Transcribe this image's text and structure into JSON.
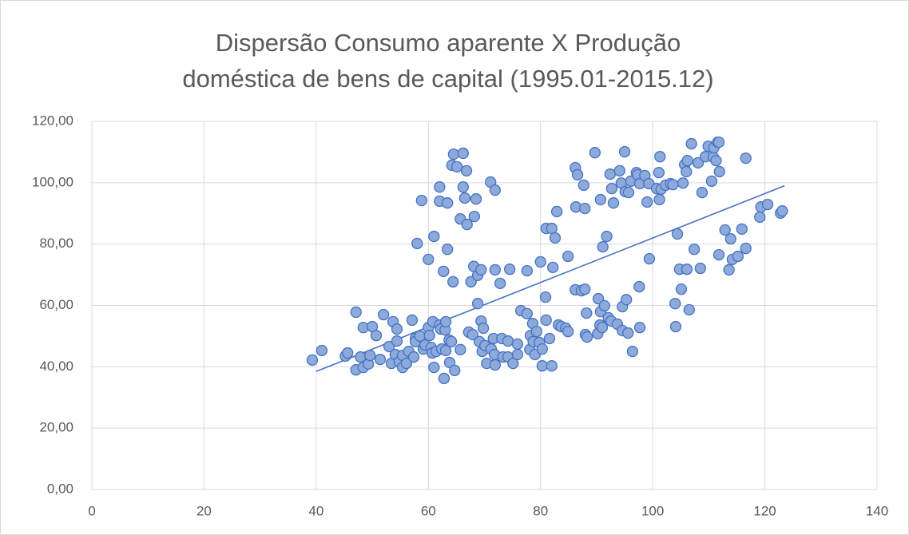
{
  "chart_data": {
    "type": "scatter",
    "title": "Dispersão Consumo aparente X Produção doméstica de bens de capital (1995.01-2015.12)",
    "xlim": [
      0,
      140
    ],
    "xticks": [
      0,
      20,
      40,
      60,
      80,
      100,
      120,
      140
    ],
    "ylim": [
      0,
      120
    ],
    "yticks": [
      {
        "value": 0,
        "label": "0,00"
      },
      {
        "value": 20,
        "label": "20,00"
      },
      {
        "value": 40,
        "label": "40,00"
      },
      {
        "value": 60,
        "label": "60,00"
      },
      {
        "value": 80,
        "label": "80,00"
      },
      {
        "value": 100,
        "label": "100,00"
      },
      {
        "value": 120,
        "label": "120,00"
      }
    ],
    "grid": true,
    "color": "#8eaadb",
    "edgecolor": "#4472c4",
    "x": [
      39.3,
      41,
      45.2,
      45.6,
      47.1,
      47.1,
      47.9,
      48.4,
      48.4,
      49.3,
      49.6,
      50,
      50.7,
      51.4,
      52,
      53,
      53.4,
      53.7,
      54.1,
      54.4,
      54.4,
      54.8,
      55.4,
      55.4,
      56.1,
      56.5,
      57.1,
      57.4,
      57.7,
      57.7,
      58.5,
      58,
      58.8,
      59.1,
      59.4,
      60,
      60,
      60.2,
      60.5,
      60.7,
      60.8,
      61,
      61,
      61.4,
      62,
      62,
      62,
      62.2,
      62.4,
      62.7,
      62.8,
      63,
      63.1,
      63.1,
      63.4,
      63.4,
      63.7,
      63.8,
      64.1,
      64.2,
      64.4,
      64.5,
      64.7,
      65.1,
      65.7,
      65.7,
      66.2,
      66.2,
      66.5,
      66.8,
      66.9,
      67.2,
      67.6,
      67.9,
      68.1,
      68.2,
      68.5,
      68.8,
      68.8,
      69.1,
      69.4,
      69.4,
      69.6,
      69.8,
      70.1,
      70.4,
      71.1,
      71.2,
      71.6,
      71.8,
      71.9,
      71.9,
      71.9,
      72.8,
      73.1,
      73.3,
      74.2,
      74.2,
      74.5,
      75.1,
      75.9,
      75.9,
      76.5,
      77.6,
      77.6,
      78.1,
      78.2,
      78.6,
      78.7,
      79,
      79.3,
      79.8,
      80,
      80.3,
      80.3,
      80.9,
      81,
      81,
      81.6,
      82,
      82,
      82.2,
      82.6,
      82.9,
      83.2,
      83.7,
      84.5,
      84.9,
      84.9,
      86.2,
      86.2,
      86.3,
      86.6,
      87.3,
      87.7,
      87.9,
      87.9,
      88,
      88.2,
      88.3,
      89.7,
      90.2,
      90.3,
      90.6,
      90.7,
      90.7,
      91,
      91.1,
      91.4,
      91.8,
      92.1,
      92.4,
      92.6,
      92.7,
      93,
      93.7,
      94.1,
      94.4,
      94.6,
      94.6,
      95.1,
      95,
      95.3,
      95.6,
      95.7,
      96.1,
      96.4,
      97.1,
      97.3,
      97.6,
      97.7,
      97.7,
      98.6,
      99,
      99.3,
      99.4,
      100.7,
      101.1,
      101.2,
      101.3,
      101.5,
      102.3,
      103.2,
      103.6,
      104.1,
      104,
      104.4,
      104.8,
      105.1,
      105.4,
      105.7,
      106,
      106.1,
      106.2,
      106.5,
      106.9,
      107.4,
      108.1,
      108.5,
      108.8,
      109.4,
      109.9,
      110.5,
      110.8,
      110.9,
      111.3,
      111.6,
      111.8,
      111.8,
      111.9,
      112.9,
      113.6,
      113.9,
      114.2,
      115.2,
      115.9,
      116.6,
      116.6,
      119.1,
      119.3,
      120.5,
      122.8,
      123.1
    ],
    "values": [
      42.2,
      45.3,
      43.5,
      44.5,
      39,
      57.8,
      43.2,
      52.8,
      39.8,
      40.9,
      43.7,
      53.1,
      50.2,
      42.4,
      57,
      46.6,
      41.1,
      54.7,
      44,
      52.3,
      48.4,
      41.6,
      43.7,
      39.8,
      41.1,
      45,
      55.2,
      43.2,
      49.2,
      48.2,
      50,
      80.2,
      94.2,
      45.8,
      47.1,
      52.8,
      75,
      50.2,
      46.3,
      44.5,
      54.7,
      39.8,
      82.5,
      45,
      53.6,
      98.6,
      94,
      52.3,
      45.8,
      71.1,
      36.2,
      52,
      54.7,
      45.3,
      93.4,
      78.3,
      48.7,
      41.4,
      48.2,
      105.7,
      67.7,
      109.3,
      38.8,
      105.2,
      45.6,
      88.2,
      109.6,
      98.6,
      95,
      103.9,
      86.4,
      51.3,
      67.7,
      50.5,
      72.7,
      89,
      94.7,
      69.8,
      60.6,
      48.2,
      71.6,
      54.9,
      45,
      52.6,
      46.9,
      41.1,
      100.2,
      45.8,
      49.2,
      44,
      40.6,
      97.6,
      71.6,
      67.2,
      49.2,
      43.2,
      48.4,
      43.2,
      71.8,
      41.1,
      44,
      47.4,
      58.3,
      71.3,
      57.3,
      45.6,
      50.2,
      54.1,
      48.2,
      44,
      51.5,
      47.9,
      74.2,
      45.8,
      40.3,
      62.7,
      55.2,
      85.1,
      49.2,
      85.1,
      40.3,
      72.4,
      82,
      90.6,
      53.6,
      53.1,
      52.6,
      51.5,
      76,
      65.1,
      104.9,
      92.1,
      102.6,
      64.8,
      99.2,
      65.3,
      91.6,
      50.5,
      57.5,
      49.7,
      109.8,
      50.8,
      62.2,
      53.6,
      94.5,
      58,
      52.8,
      79.1,
      59.9,
      82.5,
      56,
      102.8,
      54.9,
      98.1,
      93.4,
      53.9,
      103.9,
      99.9,
      51.8,
      59.6,
      97.1,
      110.1,
      61.9,
      51,
      96.8,
      100.5,
      45,
      103.3,
      102.6,
      66.1,
      99.7,
      52.8,
      102.3,
      93.7,
      99.7,
      75.2,
      98.1,
      103.3,
      94.5,
      108.5,
      97.9,
      99.2,
      99.7,
      99.4,
      53.1,
      60.6,
      83.3,
      71.8,
      65.3,
      99.9,
      105.9,
      103.6,
      71.8,
      107.2,
      58.6,
      112.7,
      78.3,
      106.5,
      72.1,
      96.8,
      108.5,
      111.9,
      100.5,
      108.3,
      111.4,
      107.2,
      113.2,
      113.2,
      76.5,
      103.6,
      84.6,
      71.6,
      81.7,
      75,
      76,
      84.9,
      78.6,
      108,
      88.8,
      92.1,
      92.9,
      90.1,
      90.8
    ],
    "trendline": {
      "color": "#4472c4",
      "x": [
        40,
        123.5
      ],
      "values": [
        38.5,
        99
      ]
    }
  }
}
